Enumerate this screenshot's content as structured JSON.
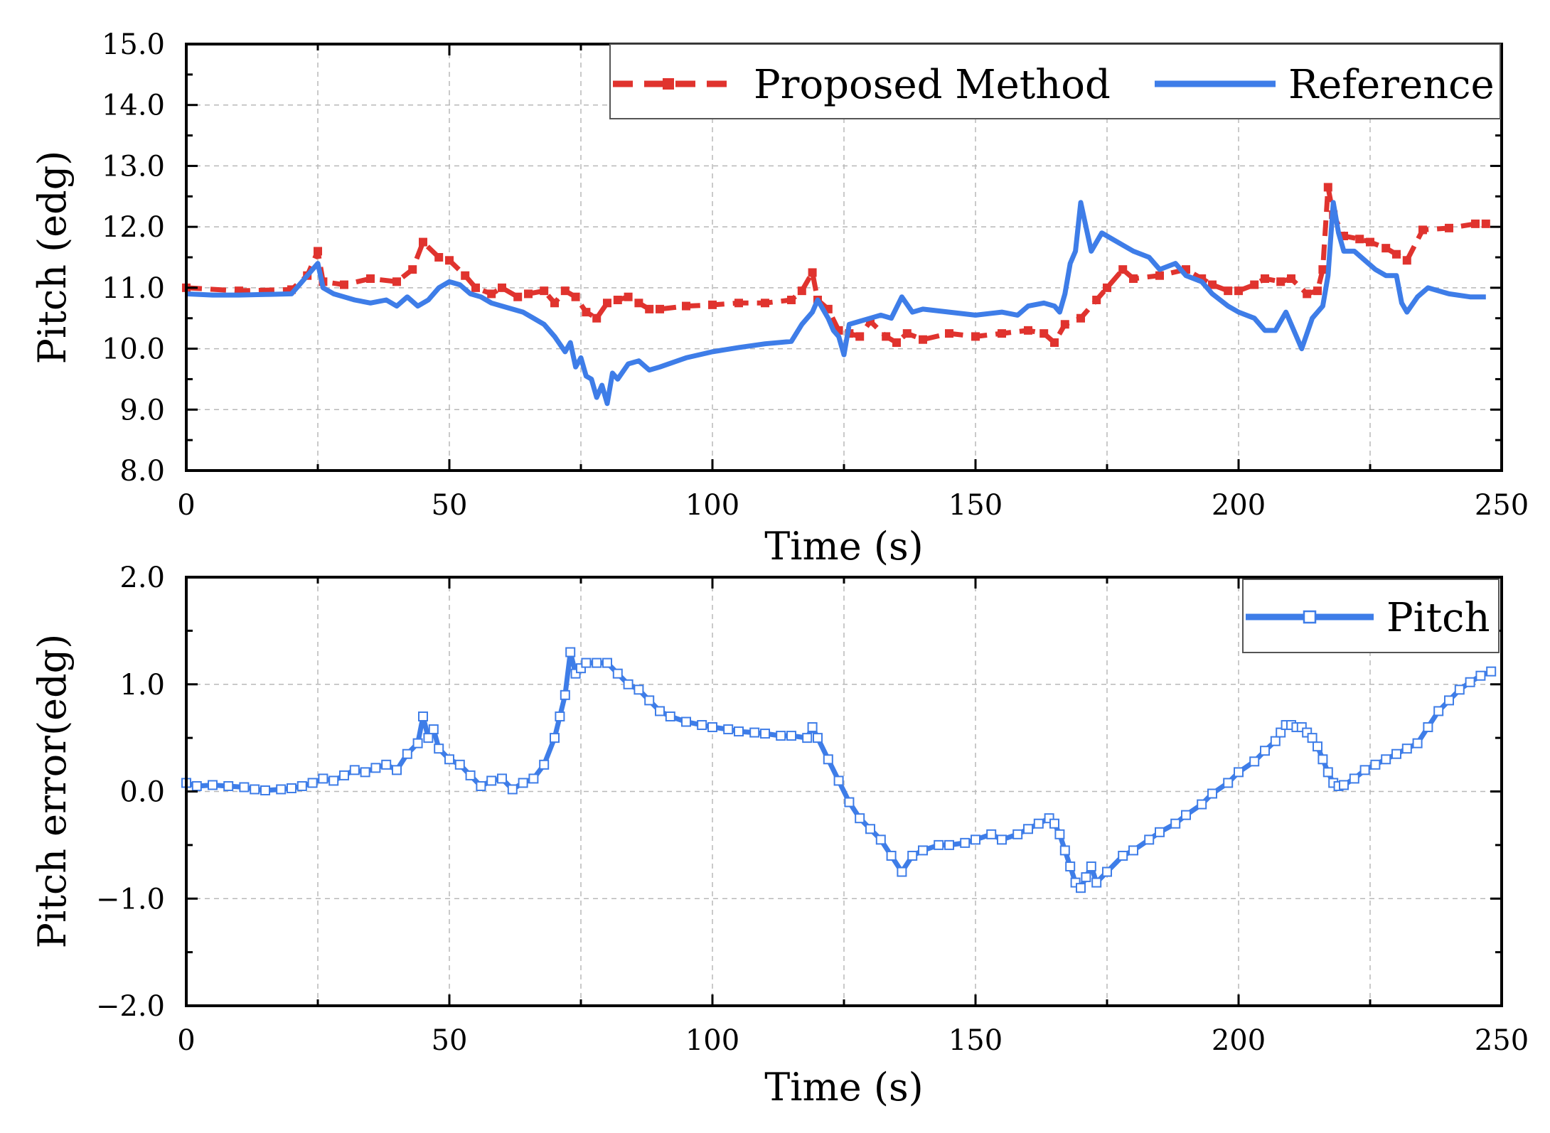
{
  "chart_data": [
    {
      "type": "line",
      "title": "",
      "xlabel": "Time (s)",
      "ylabel": "Pitch (edg)",
      "xlim": [
        0,
        250
      ],
      "ylim": [
        8.0,
        15.0
      ],
      "xticks": [
        "0",
        "50",
        "100",
        "150",
        "200",
        "250"
      ],
      "xtick_values": [
        0,
        50,
        100,
        150,
        200,
        250
      ],
      "yticks": [
        "8.0",
        "9.0",
        "10.0",
        "11.0",
        "12.0",
        "13.0",
        "14.0",
        "15.0"
      ],
      "ytick_values": [
        8,
        9,
        10,
        11,
        12,
        13,
        14,
        15
      ],
      "grid": true,
      "legend_position": "top-right",
      "legend_border_color": "#555555",
      "series": [
        {
          "name": "Proposed Method",
          "color": "#e0332e",
          "style": "dashed-square-markers",
          "x": [
            0,
            10,
            20,
            23,
            25,
            26,
            30,
            35,
            40,
            43,
            45,
            48,
            50,
            53,
            55,
            58,
            60,
            63,
            65,
            68,
            70,
            72,
            74,
            76,
            78,
            80,
            82,
            84,
            86,
            88,
            90,
            95,
            100,
            105,
            110,
            115,
            117,
            119,
            120,
            122,
            124,
            126,
            128,
            130,
            133,
            135,
            137,
            140,
            145,
            150,
            155,
            160,
            163,
            165,
            167,
            170,
            173,
            175,
            178,
            180,
            185,
            190,
            193,
            195,
            198,
            200,
            203,
            205,
            208,
            210,
            213,
            215,
            216,
            217,
            218,
            220,
            223,
            225,
            228,
            230,
            232,
            235,
            240,
            245,
            247
          ],
          "values": [
            11.0,
            10.95,
            10.97,
            11.2,
            11.6,
            11.1,
            11.05,
            11.15,
            11.1,
            11.3,
            11.75,
            11.5,
            11.45,
            11.2,
            11.0,
            10.9,
            11.0,
            10.85,
            10.9,
            10.95,
            10.75,
            10.95,
            10.85,
            10.6,
            10.5,
            10.75,
            10.8,
            10.85,
            10.75,
            10.65,
            10.65,
            10.7,
            10.72,
            10.75,
            10.75,
            10.8,
            10.95,
            11.25,
            10.8,
            10.65,
            10.3,
            10.25,
            10.2,
            10.45,
            10.2,
            10.1,
            10.25,
            10.15,
            10.25,
            10.2,
            10.25,
            10.3,
            10.25,
            10.1,
            10.4,
            10.5,
            10.8,
            11.0,
            11.3,
            11.15,
            11.2,
            11.3,
            11.15,
            11.05,
            10.95,
            10.95,
            11.05,
            11.15,
            11.1,
            11.15,
            10.9,
            10.95,
            11.3,
            12.65,
            12.2,
            11.85,
            11.8,
            11.75,
            11.65,
            11.55,
            11.45,
            11.95,
            11.98,
            12.05,
            12.05
          ]
        },
        {
          "name": "Reference",
          "color": "#3e7de8",
          "style": "solid",
          "x": [
            0,
            5,
            10,
            15,
            20,
            22,
            24,
            25,
            26,
            28,
            30,
            32,
            35,
            38,
            40,
            42,
            44,
            46,
            48,
            50,
            52,
            54,
            56,
            58,
            60,
            62,
            64,
            66,
            68,
            70,
            72,
            73,
            74,
            75,
            76,
            77,
            78,
            79,
            80,
            81,
            82,
            84,
            86,
            88,
            90,
            95,
            100,
            105,
            110,
            115,
            117,
            119,
            120,
            122,
            123,
            124,
            125,
            126,
            128,
            130,
            132,
            134,
            136,
            138,
            140,
            145,
            150,
            155,
            158,
            160,
            163,
            165,
            166,
            167,
            168,
            169,
            170,
            172,
            174,
            176,
            178,
            180,
            183,
            185,
            188,
            190,
            193,
            195,
            198,
            200,
            203,
            205,
            207,
            209,
            210,
            212,
            214,
            215,
            216,
            217,
            218,
            219,
            220,
            222,
            224,
            226,
            228,
            230,
            231,
            232,
            234,
            236,
            240,
            244,
            247
          ],
          "values": [
            10.9,
            10.88,
            10.88,
            10.89,
            10.9,
            11.1,
            11.3,
            11.4,
            11.0,
            10.9,
            10.85,
            10.8,
            10.75,
            10.8,
            10.7,
            10.85,
            10.7,
            10.8,
            11.0,
            11.1,
            11.05,
            10.9,
            10.85,
            10.75,
            10.7,
            10.65,
            10.6,
            10.5,
            10.4,
            10.2,
            9.95,
            10.1,
            9.7,
            9.85,
            9.55,
            9.5,
            9.2,
            9.4,
            9.1,
            9.6,
            9.5,
            9.75,
            9.8,
            9.65,
            9.7,
            9.85,
            9.95,
            10.02,
            10.08,
            10.12,
            10.4,
            10.6,
            10.8,
            10.5,
            10.3,
            10.2,
            9.9,
            10.4,
            10.45,
            10.5,
            10.55,
            10.5,
            10.85,
            10.6,
            10.65,
            10.6,
            10.55,
            10.6,
            10.55,
            10.7,
            10.75,
            10.7,
            10.6,
            10.9,
            11.4,
            11.6,
            12.4,
            11.6,
            11.9,
            11.8,
            11.7,
            11.6,
            11.5,
            11.3,
            11.4,
            11.2,
            11.1,
            10.9,
            10.7,
            10.6,
            10.5,
            10.3,
            10.3,
            10.6,
            10.4,
            10.0,
            10.5,
            10.6,
            10.7,
            11.2,
            12.4,
            11.9,
            11.6,
            11.6,
            11.45,
            11.3,
            11.2,
            11.2,
            10.75,
            10.6,
            10.85,
            11.0,
            10.9,
            10.85,
            10.85
          ]
        }
      ]
    },
    {
      "type": "line",
      "title": "",
      "xlabel": "Time (s)",
      "ylabel": "Pitch error(edg)",
      "xlim": [
        0,
        250
      ],
      "ylim": [
        -2.0,
        2.0
      ],
      "xticks": [
        "0",
        "50",
        "100",
        "150",
        "200",
        "250"
      ],
      "xtick_values": [
        0,
        50,
        100,
        150,
        200,
        250
      ],
      "yticks": [
        "−2.0",
        "−1.0",
        "0.0",
        "1.0",
        "2.0"
      ],
      "ytick_values": [
        -2,
        -1,
        0,
        1,
        2
      ],
      "grid": true,
      "legend_position": "top-right",
      "legend_border_color": "#555555",
      "series": [
        {
          "name": "Pitch",
          "color": "#3e7de8",
          "style": "solid-hollow-square-markers",
          "x": [
            0,
            2,
            5,
            8,
            11,
            13,
            15,
            18,
            20,
            22,
            24,
            26,
            28,
            30,
            32,
            34,
            36,
            38,
            40,
            42,
            44,
            45,
            46,
            47,
            48,
            50,
            52,
            54,
            56,
            58,
            60,
            62,
            64,
            66,
            68,
            70,
            71,
            72,
            73,
            74,
            75,
            76,
            78,
            80,
            82,
            84,
            86,
            88,
            90,
            92,
            95,
            98,
            100,
            103,
            105,
            108,
            110,
            113,
            115,
            118,
            119,
            120,
            122,
            124,
            126,
            128,
            130,
            132,
            134,
            136,
            138,
            140,
            143,
            145,
            148,
            150,
            153,
            155,
            158,
            160,
            162,
            164,
            165,
            166,
            167,
            168,
            169,
            170,
            171,
            172,
            173,
            175,
            178,
            180,
            183,
            185,
            188,
            190,
            193,
            195,
            198,
            200,
            203,
            205,
            207,
            208,
            209,
            210,
            211,
            212,
            213,
            214,
            215,
            216,
            217,
            218,
            219,
            220,
            222,
            224,
            226,
            228,
            230,
            232,
            234,
            236,
            238,
            240,
            242,
            244,
            246,
            248
          ],
          "values": [
            0.08,
            0.05,
            0.06,
            0.05,
            0.04,
            0.02,
            0.01,
            0.02,
            0.03,
            0.05,
            0.08,
            0.12,
            0.1,
            0.15,
            0.2,
            0.18,
            0.22,
            0.25,
            0.2,
            0.35,
            0.45,
            0.7,
            0.5,
            0.58,
            0.4,
            0.3,
            0.25,
            0.15,
            0.05,
            0.1,
            0.12,
            0.02,
            0.08,
            0.12,
            0.25,
            0.5,
            0.7,
            0.9,
            1.3,
            1.1,
            1.15,
            1.2,
            1.2,
            1.2,
            1.1,
            1.0,
            0.95,
            0.85,
            0.75,
            0.7,
            0.65,
            0.62,
            0.6,
            0.58,
            0.56,
            0.55,
            0.54,
            0.52,
            0.52,
            0.5,
            0.6,
            0.5,
            0.3,
            0.1,
            -0.1,
            -0.25,
            -0.35,
            -0.45,
            -0.6,
            -0.75,
            -0.6,
            -0.55,
            -0.5,
            -0.5,
            -0.48,
            -0.45,
            -0.4,
            -0.45,
            -0.4,
            -0.35,
            -0.3,
            -0.25,
            -0.3,
            -0.4,
            -0.55,
            -0.7,
            -0.85,
            -0.9,
            -0.8,
            -0.7,
            -0.85,
            -0.75,
            -0.6,
            -0.55,
            -0.45,
            -0.38,
            -0.3,
            -0.22,
            -0.12,
            -0.02,
            0.08,
            0.18,
            0.28,
            0.38,
            0.47,
            0.55,
            0.62,
            0.62,
            0.6,
            0.6,
            0.55,
            0.5,
            0.42,
            0.3,
            0.18,
            0.08,
            0.05,
            0.06,
            0.12,
            0.2,
            0.25,
            0.3,
            0.35,
            0.4,
            0.45,
            0.6,
            0.75,
            0.85,
            0.95,
            1.02,
            1.08,
            1.12
          ]
        }
      ]
    }
  ]
}
